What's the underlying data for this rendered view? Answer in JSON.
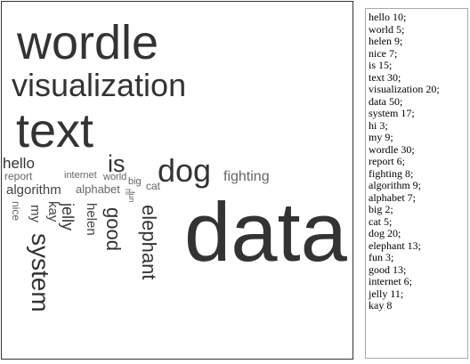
{
  "cloud": {
    "words": [
      {
        "text": "wordle",
        "color": "#333333"
      },
      {
        "text": "visualization",
        "color": "#333333"
      },
      {
        "text": "text",
        "color": "#333333"
      },
      {
        "text": "hello",
        "color": "#333333"
      },
      {
        "text": "is",
        "color": "#333333"
      },
      {
        "text": "dog",
        "color": "#333333"
      },
      {
        "text": "fighting",
        "color": "#666666"
      },
      {
        "text": "report",
        "color": "#666666"
      },
      {
        "text": "internet",
        "color": "#666666"
      },
      {
        "text": "world",
        "color": "#666666"
      },
      {
        "text": "big",
        "color": "#666666"
      },
      {
        "text": "cat",
        "color": "#666666"
      },
      {
        "text": "algorithm",
        "color": "#444444"
      },
      {
        "text": "alphabet",
        "color": "#666666"
      },
      {
        "text": "hi",
        "color": "#666666"
      },
      {
        "text": "fun",
        "color": "#666666"
      },
      {
        "text": "nice",
        "color": "#666666"
      },
      {
        "text": "my",
        "color": "#444444"
      },
      {
        "text": "kay",
        "color": "#444444"
      },
      {
        "text": "jelly",
        "color": "#333333"
      },
      {
        "text": "helen",
        "color": "#444444"
      },
      {
        "text": "good",
        "color": "#333333"
      },
      {
        "text": "elephant",
        "color": "#333333"
      },
      {
        "text": "system",
        "color": "#333333"
      },
      {
        "text": "data",
        "color": "#333333"
      }
    ]
  },
  "input": {
    "lines": [
      "hello 10;",
      "world 5;",
      "helen 9;",
      "nice 7;",
      "is 15;",
      "text 30;",
      "visualization 20;",
      "data 50;",
      "system 17;",
      "hi 3;",
      "my 9;",
      "wordle 30;",
      "report 6;",
      "fighting 8;",
      "algorithm 9;",
      "alphabet 7;",
      "big 2;",
      "cat 5;",
      "dog 20;",
      "elephant 13;",
      "fun 3;",
      "good 13;",
      "internet 6;",
      "jelly 11;",
      "kay 8"
    ]
  }
}
